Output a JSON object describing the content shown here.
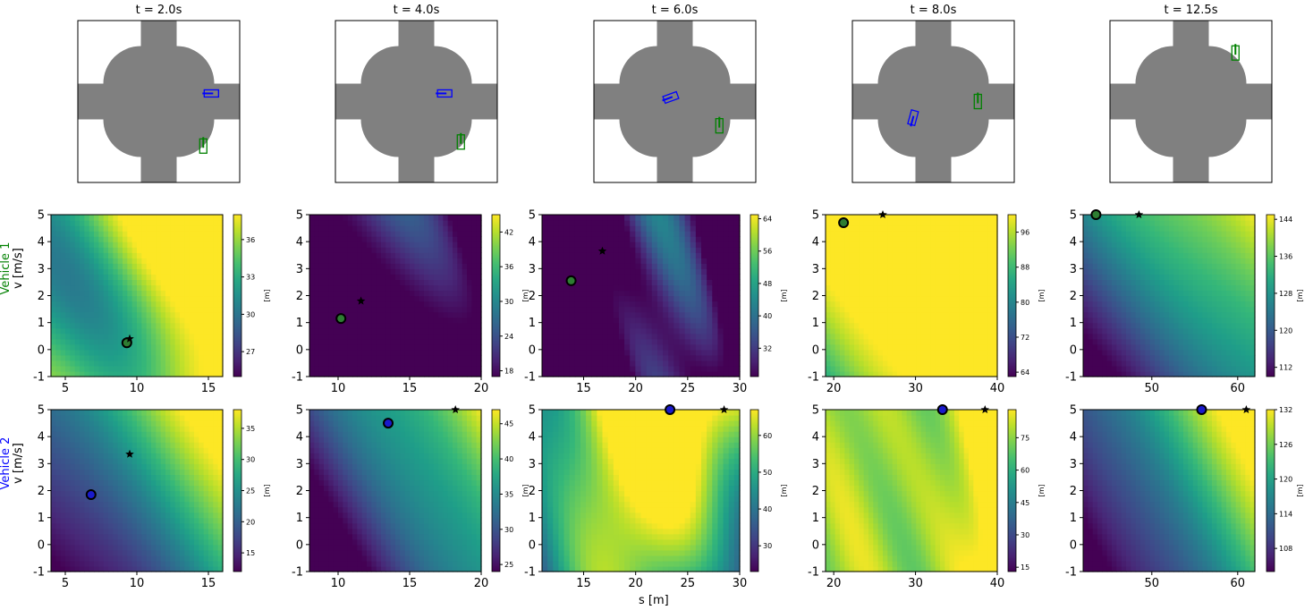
{
  "figure": {
    "row_labels": [
      {
        "vehicle": "Vehicle 1",
        "quantity": "v [m/s]",
        "color": "#008000"
      },
      {
        "vehicle": "Vehicle 2",
        "quantity": "v [m/s]",
        "color": "#0000ff"
      }
    ],
    "xlabel": "s [m]",
    "cbar_unit": "[m]"
  },
  "chart_data": [
    {
      "type": "diagram",
      "title": "t = 2.0s",
      "vehicles": [
        {
          "name": "Vehicle 1",
          "color": "#008000",
          "pos": [
            0.55,
            -0.55
          ],
          "heading": 90
        },
        {
          "name": "Vehicle 2",
          "color": "#0000ff",
          "pos": [
            0.65,
            0.1
          ],
          "heading": 180
        }
      ]
    },
    {
      "type": "diagram",
      "title": "t = 4.0s",
      "vehicles": [
        {
          "name": "Vehicle 1",
          "color": "#008000",
          "pos": [
            0.55,
            -0.5
          ],
          "heading": 90
        },
        {
          "name": "Vehicle 2",
          "color": "#0000ff",
          "pos": [
            0.35,
            0.1
          ],
          "heading": 180
        }
      ]
    },
    {
      "type": "diagram",
      "title": "t = 6.0s",
      "vehicles": [
        {
          "name": "Vehicle 1",
          "color": "#008000",
          "pos": [
            0.55,
            -0.3
          ],
          "heading": 90
        },
        {
          "name": "Vehicle 2",
          "color": "#0000ff",
          "pos": [
            -0.05,
            0.05
          ],
          "heading": 200
        }
      ]
    },
    {
      "type": "diagram",
      "title": "t = 8.0s",
      "vehicles": [
        {
          "name": "Vehicle 1",
          "color": "#008000",
          "pos": [
            0.55,
            0.0
          ],
          "heading": 90
        },
        {
          "name": "Vehicle 2",
          "color": "#0000ff",
          "pos": [
            -0.25,
            -0.2
          ],
          "heading": 255
        }
      ]
    },
    {
      "type": "diagram",
      "title": "t = 12.5s",
      "vehicles": [
        {
          "name": "Vehicle 1",
          "color": "#008000",
          "pos": [
            0.55,
            0.6
          ],
          "heading": 90
        }
      ]
    },
    {
      "type": "heatmap",
      "row": "Vehicle 1",
      "xlim": [
        4,
        16
      ],
      "ylim": [
        -1,
        5
      ],
      "xticks": [
        5,
        10,
        15
      ],
      "yticks": [
        -1,
        0,
        1,
        2,
        3,
        4,
        5
      ],
      "clim": [
        25,
        38
      ],
      "cticks": [
        27,
        30,
        33,
        36
      ],
      "field": {
        "base": 31,
        "gx": 0.45,
        "gy": 0.1,
        "waves": [
          [
            2.0,
            0.5,
            0.4,
            0.6
          ],
          [
            1.5,
            0.2,
            0.7,
            2.0
          ]
        ]
      },
      "point": [
        9.3,
        0.25
      ],
      "star": [
        9.5,
        0.4
      ]
    },
    {
      "type": "heatmap",
      "row": "Vehicle 1",
      "xlim": [
        8,
        20
      ],
      "ylim": [
        -1,
        5
      ],
      "xticks": [
        10,
        15,
        20
      ],
      "yticks": [
        -1,
        0,
        1,
        2,
        3,
        4,
        5
      ],
      "clim": [
        17,
        45
      ],
      "cticks": [
        18,
        24,
        30,
        36,
        42
      ],
      "field": {
        "base": 32,
        "gx": -1.3,
        "gy": 0.2,
        "waves": [
          [
            10,
            0.35,
            0.3,
            1.2
          ],
          [
            3,
            0.6,
            0.8,
            0.3
          ]
        ]
      },
      "point": [
        10.2,
        1.15
      ],
      "star": [
        11.6,
        1.8
      ]
    },
    {
      "type": "heatmap",
      "row": "Vehicle 1",
      "xlim": [
        11,
        30
      ],
      "ylim": [
        -1,
        5
      ],
      "xticks": [
        15,
        20,
        25,
        30
      ],
      "yticks": [
        -1,
        0,
        1,
        2,
        3,
        4,
        5
      ],
      "clim": [
        25,
        65
      ],
      "cticks": [
        32,
        40,
        48,
        56,
        64
      ],
      "field": {
        "base": 44,
        "gx": -1.2,
        "gy": 0.5,
        "waves": [
          [
            18,
            0.28,
            0.1,
            0.9
          ],
          [
            6,
            0.7,
            0.9,
            0.4
          ]
        ]
      },
      "point": [
        13.8,
        2.55
      ],
      "star": [
        16.8,
        3.65
      ]
    },
    {
      "type": "heatmap",
      "row": "Vehicle 1",
      "xlim": [
        19,
        40
      ],
      "ylim": [
        -1,
        5
      ],
      "xticks": [
        20,
        30,
        40
      ],
      "yticks": [
        -1,
        0,
        1,
        2,
        3,
        4,
        5
      ],
      "clim": [
        63,
        100
      ],
      "cticks": [
        64,
        72,
        80,
        88,
        96
      ],
      "field": {
        "base": 64,
        "gx": 1.35,
        "gy": 3.2,
        "waves": [
          [
            2,
            0.3,
            0.5,
            1.0
          ]
        ]
      },
      "point": [
        21.2,
        4.7
      ],
      "star": [
        26.0,
        5.0
      ]
    },
    {
      "type": "heatmap",
      "row": "Vehicle 1",
      "xlim": [
        42,
        62
      ],
      "ylim": [
        -1,
        5
      ],
      "xticks": [
        50,
        60
      ],
      "yticks": [
        -1,
        0,
        1,
        2,
        3,
        4,
        5
      ],
      "clim": [
        110,
        145
      ],
      "cticks": [
        112,
        120,
        128,
        136,
        144
      ],
      "field": {
        "base": 66,
        "gx": 1.05,
        "gy": 3.0,
        "waves": [
          [
            2,
            0.25,
            0.4,
            0.5
          ]
        ]
      },
      "point": [
        43.5,
        5.0
      ],
      "star": [
        48.5,
        5.0
      ]
    },
    {
      "type": "heatmap",
      "row": "Vehicle 2",
      "xlim": [
        4,
        16
      ],
      "ylim": [
        -1,
        5
      ],
      "xticks": [
        5,
        10,
        15
      ],
      "yticks": [
        -1,
        0,
        1,
        2,
        3,
        4,
        5
      ],
      "clim": [
        12,
        38
      ],
      "cticks": [
        15,
        20,
        25,
        30,
        35
      ],
      "field": {
        "base": 5,
        "gx": 1.55,
        "gy": 2.2,
        "waves": [
          [
            2,
            0.4,
            0.3,
            0.6
          ]
        ]
      },
      "point": [
        6.8,
        1.85
      ],
      "star": [
        9.5,
        3.35
      ]
    },
    {
      "type": "heatmap",
      "row": "Vehicle 2",
      "xlim": [
        8,
        20
      ],
      "ylim": [
        -1,
        5
      ],
      "xticks": [
        10,
        15,
        20
      ],
      "yticks": [
        -1,
        0,
        1,
        2,
        3,
        4,
        5
      ],
      "clim": [
        24,
        47
      ],
      "cticks": [
        25,
        30,
        35,
        40,
        45
      ],
      "field": {
        "base": 8,
        "gx": 1.5,
        "gy": 1.7,
        "waves": [
          [
            1.5,
            0.5,
            0.5,
            0.2
          ]
        ]
      },
      "point": [
        13.5,
        4.5
      ],
      "star": [
        18.2,
        5.0
      ]
    },
    {
      "type": "heatmap",
      "row": "Vehicle 2",
      "xlim": [
        11,
        30
      ],
      "ylim": [
        -1,
        5
      ],
      "xticks": [
        15,
        20,
        25,
        30
      ],
      "yticks": [
        -1,
        0,
        1,
        2,
        3,
        4,
        5
      ],
      "clim": [
        23,
        67
      ],
      "cticks": [
        30,
        40,
        50,
        60
      ],
      "field": {
        "base": 40,
        "gx": 0.4,
        "gy": 3.0,
        "waves": [
          [
            -18,
            0.22,
            -0.1,
            0.4
          ],
          [
            5,
            0.5,
            0.6,
            1.0
          ]
        ]
      },
      "point": [
        23.3,
        5.0
      ],
      "star": [
        28.5,
        5.0
      ]
    },
    {
      "type": "heatmap",
      "row": "Vehicle 2",
      "xlim": [
        19,
        40
      ],
      "ylim": [
        -1,
        5
      ],
      "xticks": [
        20,
        30,
        40
      ],
      "yticks": [
        -1,
        0,
        1,
        2,
        3,
        4,
        5
      ],
      "clim": [
        13,
        88
      ],
      "cticks": [
        15,
        30,
        45,
        60,
        75
      ],
      "field": {
        "base": 25,
        "gx": 2.0,
        "gy": 0.3,
        "waves": [
          [
            -14,
            0.22,
            0.05,
            0.5
          ],
          [
            6,
            0.6,
            0.8,
            0.3
          ]
        ]
      },
      "point": [
        33.3,
        5.0
      ],
      "star": [
        38.5,
        5.0
      ]
    },
    {
      "type": "heatmap",
      "row": "Vehicle 2",
      "xlim": [
        42,
        62
      ],
      "ylim": [
        -1,
        5
      ],
      "xticks": [
        50,
        60
      ],
      "yticks": [
        -1,
        0,
        1,
        2,
        3,
        4,
        5
      ],
      "clim": [
        104,
        132
      ],
      "cticks": [
        108,
        114,
        120,
        126,
        132
      ],
      "field": {
        "base": 48,
        "gx": 1.25,
        "gy": 2.1,
        "waves": [
          [
            1.5,
            0.3,
            0.4,
            0.8
          ]
        ]
      },
      "point": [
        55.8,
        5.0
      ],
      "star": [
        61.0,
        5.0
      ]
    }
  ]
}
